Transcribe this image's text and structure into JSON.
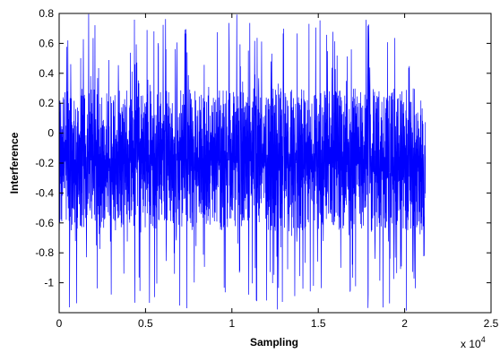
{
  "chart_data": {
    "type": "line",
    "title": "",
    "xlabel": "Sampling",
    "ylabel": "Interference",
    "x_exponent_label": "x 10",
    "x_exponent_power": "4",
    "xlim": [
      0,
      2.5
    ],
    "ylim": [
      -1.2,
      0.8
    ],
    "x_unit_multiplier": 10000,
    "xticks": [
      0,
      0.5,
      1,
      1.5,
      2,
      2.5
    ],
    "xtick_labels": [
      "0",
      "0.5",
      "1",
      "1.5",
      "2",
      "2.5"
    ],
    "yticks": [
      0.8,
      0.6,
      0.4,
      0.2,
      0,
      -0.2,
      -0.4,
      -0.6,
      -0.8,
      -1
    ],
    "ytick_labels": [
      "0.8",
      "0.6",
      "0.4",
      "0.2",
      "0",
      "-0.2",
      "-0.4",
      "-0.6",
      "-0.8",
      "-1"
    ],
    "grid": false,
    "line_color": "#0000ff",
    "series": [
      {
        "signal_x_range": [
          0,
          2.12
        ],
        "typical_band": [
          -0.65,
          0.3
        ],
        "peak_range": [
          -1.2,
          0.8
        ],
        "mean": -0.18
      }
    ]
  }
}
